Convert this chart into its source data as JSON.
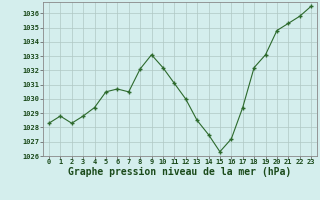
{
  "x": [
    0,
    1,
    2,
    3,
    4,
    5,
    6,
    7,
    8,
    9,
    10,
    11,
    12,
    13,
    14,
    15,
    16,
    17,
    18,
    19,
    20,
    21,
    22,
    23
  ],
  "y": [
    1028.3,
    1028.8,
    1028.3,
    1028.8,
    1029.4,
    1030.5,
    1030.7,
    1030.5,
    1032.1,
    1033.1,
    1032.2,
    1031.1,
    1030.0,
    1028.5,
    1027.5,
    1026.3,
    1027.2,
    1029.4,
    1032.2,
    1033.1,
    1034.8,
    1035.3,
    1035.8,
    1036.5
  ],
  "line_color": "#2d6a2d",
  "marker_color": "#2d6a2d",
  "bg_color": "#d4eeed",
  "grid_color": "#b0c8c4",
  "xlabel": "Graphe pression niveau de la mer (hPa)",
  "ylim": [
    1026,
    1036.8
  ],
  "xlim": [
    -0.5,
    23.5
  ],
  "yticks": [
    1026,
    1027,
    1028,
    1029,
    1030,
    1031,
    1032,
    1033,
    1034,
    1035,
    1036
  ],
  "xticks": [
    0,
    1,
    2,
    3,
    4,
    5,
    6,
    7,
    8,
    9,
    10,
    11,
    12,
    13,
    14,
    15,
    16,
    17,
    18,
    19,
    20,
    21,
    22,
    23
  ],
  "tick_fontsize": 5.0,
  "xlabel_fontsize": 7.0
}
